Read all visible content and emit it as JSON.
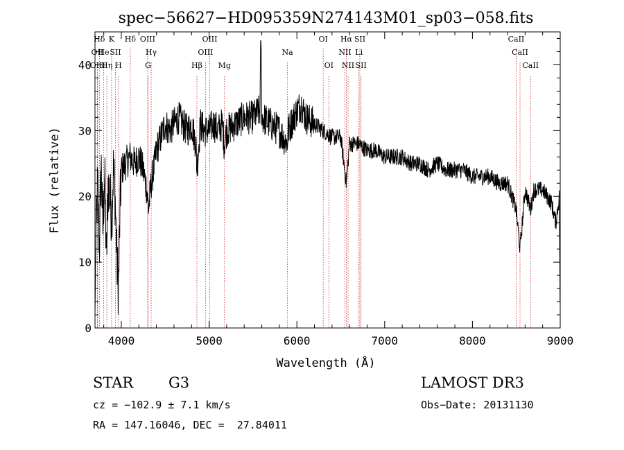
{
  "chart_data": {
    "type": "line",
    "title": "spec−56627−HD095359N274143M01_sp03−058.fits",
    "xlabel": "Wavelength (Å)",
    "ylabel": "Flux (relative)",
    "xlim": [
      3700,
      9000
    ],
    "ylim": [
      0,
      45
    ],
    "x_ticks": [
      "4000",
      "5000",
      "6000",
      "7000",
      "8000",
      "9000"
    ],
    "y_ticks": [
      "0",
      "10",
      "20",
      "30",
      "40"
    ],
    "grid": false,
    "line_color": "#000000",
    "spectrum_anchor_points": [
      [
        3700,
        2
      ],
      [
        3710,
        13
      ],
      [
        3730,
        22
      ],
      [
        3750,
        12
      ],
      [
        3770,
        25
      ],
      [
        3790,
        15
      ],
      [
        3810,
        24
      ],
      [
        3830,
        10
      ],
      [
        3850,
        22
      ],
      [
        3870,
        20
      ],
      [
        3890,
        17
      ],
      [
        3910,
        24
      ],
      [
        3930,
        20
      ],
      [
        3950,
        10
      ],
      [
        3968,
        6
      ],
      [
        3985,
        18
      ],
      [
        4000,
        24
      ],
      [
        4050,
        25
      ],
      [
        4100,
        26
      ],
      [
        4150,
        25
      ],
      [
        4200,
        26
      ],
      [
        4250,
        24
      ],
      [
        4290,
        21
      ],
      [
        4310,
        18
      ],
      [
        4340,
        22
      ],
      [
        4380,
        25
      ],
      [
        4400,
        27
      ],
      [
        4450,
        29
      ],
      [
        4500,
        31
      ],
      [
        4550,
        30
      ],
      [
        4600,
        31
      ],
      [
        4650,
        32
      ],
      [
        4700,
        31
      ],
      [
        4750,
        30
      ],
      [
        4800,
        31
      ],
      [
        4850,
        28
      ],
      [
        4861,
        24
      ],
      [
        4900,
        31
      ],
      [
        4950,
        30
      ],
      [
        5000,
        30
      ],
      [
        5050,
        31
      ],
      [
        5100,
        30
      ],
      [
        5150,
        31
      ],
      [
        5172,
        28
      ],
      [
        5200,
        30
      ],
      [
        5300,
        31
      ],
      [
        5400,
        32
      ],
      [
        5500,
        32
      ],
      [
        5580,
        33
      ],
      [
        5590,
        45
      ],
      [
        5600,
        32
      ],
      [
        5700,
        31
      ],
      [
        5800,
        30
      ],
      [
        5890,
        28
      ],
      [
        5900,
        30
      ],
      [
        6000,
        33
      ],
      [
        6050,
        34
      ],
      [
        6100,
        32
      ],
      [
        6200,
        31
      ],
      [
        6300,
        30
      ],
      [
        6400,
        29
      ],
      [
        6500,
        29
      ],
      [
        6563,
        22
      ],
      [
        6600,
        28
      ],
      [
        6700,
        28
      ],
      [
        6800,
        27
      ],
      [
        6900,
        27
      ],
      [
        7000,
        26
      ],
      [
        7100,
        26
      ],
      [
        7200,
        26
      ],
      [
        7300,
        25
      ],
      [
        7400,
        25
      ],
      [
        7500,
        24
      ],
      [
        7600,
        25
      ],
      [
        7700,
        24
      ],
      [
        7800,
        24
      ],
      [
        7900,
        24
      ],
      [
        8000,
        23
      ],
      [
        8100,
        23
      ],
      [
        8200,
        23
      ],
      [
        8300,
        22
      ],
      [
        8400,
        22
      ],
      [
        8498,
        18
      ],
      [
        8542,
        12
      ],
      [
        8600,
        21
      ],
      [
        8662,
        18
      ],
      [
        8700,
        21
      ],
      [
        8800,
        21
      ],
      [
        8900,
        19
      ],
      [
        8950,
        16
      ],
      [
        8990,
        20
      ],
      [
        9000,
        0
      ]
    ],
    "line_markers": [
      {
        "label": "Hδ",
        "x": 3750,
        "row": 0
      },
      {
        "label": "OII",
        "x": 3727,
        "row": 1
      },
      {
        "label": "OIII",
        "x": 3730,
        "row": 2
      },
      {
        "label": "He",
        "x": 3799,
        "row": 1
      },
      {
        "label": "Hη",
        "x": 3835,
        "row": 2
      },
      {
        "label": "K",
        "x": 3889,
        "row": 0
      },
      {
        "label": "SII",
        "x": 3933,
        "row": 1
      },
      {
        "label": "H",
        "x": 3968,
        "row": 2
      },
      {
        "label": "Hδ",
        "x": 4102,
        "row": 0
      },
      {
        "label": "OIII",
        "x": 4300,
        "row": 0
      },
      {
        "label": "Hγ",
        "x": 4340,
        "row": 1
      },
      {
        "label": "G",
        "x": 4304,
        "row": 2
      },
      {
        "label": "Hβ",
        "x": 4861,
        "row": 2
      },
      {
        "label": "OIII",
        "x": 4959,
        "row": 1
      },
      {
        "label": "OIII",
        "x": 5007,
        "row": 0
      },
      {
        "label": "Mg",
        "x": 5175,
        "row": 2
      },
      {
        "label": "Na",
        "x": 5893,
        "row": 1
      },
      {
        "label": "OI",
        "x": 6300,
        "row": 0
      },
      {
        "label": "OI",
        "x": 6364,
        "row": 2
      },
      {
        "label": "Hα",
        "x": 6563,
        "row": 0
      },
      {
        "label": "NII",
        "x": 6548,
        "row": 1
      },
      {
        "label": "NII",
        "x": 6583,
        "row": 2
      },
      {
        "label": "SII",
        "x": 6717,
        "row": 0
      },
      {
        "label": "Li",
        "x": 6707,
        "row": 1
      },
      {
        "label": "SII",
        "x": 6731,
        "row": 2
      },
      {
        "label": "CaII",
        "x": 8498,
        "row": 0
      },
      {
        "label": "CaII",
        "x": 8542,
        "row": 1
      },
      {
        "label": "CaII",
        "x": 8662,
        "row": 2
      }
    ],
    "marker_color": "#cc2222"
  },
  "info": {
    "class_label": "STAR",
    "subclass": "G3",
    "survey": "LAMOST DR3",
    "cz": "cz = −102.9 ± 7.1 km/s",
    "obs_date": "Obs−Date: 20131130",
    "coords": "RA = 147.16046, DEC =  27.84011"
  }
}
